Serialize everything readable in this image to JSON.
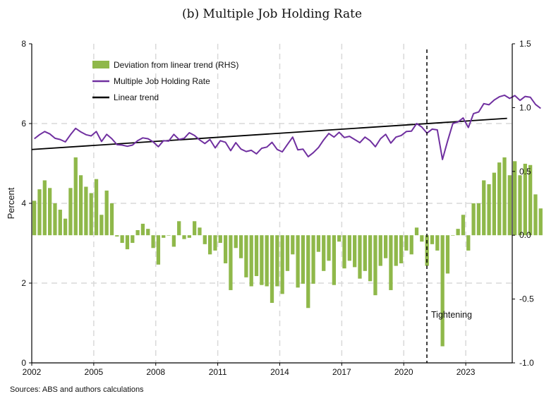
{
  "chart_data": {
    "type": "bar",
    "title": "(b) Multiple Job Holding Rate",
    "ylabel": "Percent",
    "ylabel_right": "",
    "x_ticks": [
      "2002",
      "2005",
      "2008",
      "2011",
      "2014",
      "2017",
      "2020",
      "2023"
    ],
    "x_range": [
      2002.0,
      2025.25
    ],
    "ylim": [
      0,
      8
    ],
    "y_ticks": [
      "0",
      "2",
      "4",
      "6",
      "8"
    ],
    "ylim_right": [
      -1.0,
      1.5
    ],
    "y_ticks_right": [
      "-1.0",
      "-0.5",
      "0.0",
      "0.5",
      "1.0",
      "1.5"
    ],
    "grid": "horizontal dashed at 2, 4, 6; vertical dashed at year ticks",
    "legend_position": "top-left",
    "colors": {
      "deviation": "#8fb84a",
      "rate": "#7030a0",
      "trend": "#000000",
      "grid": "#d9d9d9"
    },
    "series": [
      {
        "name": "Deviation from linear trend (RHS)",
        "type": "bar",
        "axis": "right",
        "x_start": 2002.0,
        "x_step": 0.25,
        "values": [
          0.27,
          0.36,
          0.43,
          0.37,
          0.25,
          0.2,
          0.13,
          0.37,
          0.61,
          0.47,
          0.38,
          0.33,
          0.44,
          0.16,
          0.35,
          0.25,
          -0.01,
          -0.06,
          -0.11,
          -0.06,
          0.04,
          0.09,
          0.05,
          -0.1,
          -0.23,
          -0.02,
          0.0,
          -0.09,
          0.11,
          -0.03,
          -0.02,
          0.11,
          0.06,
          -0.07,
          -0.15,
          -0.12,
          -0.06,
          -0.22,
          -0.43,
          -0.1,
          -0.18,
          -0.33,
          -0.4,
          -0.32,
          -0.39,
          -0.4,
          -0.53,
          -0.4,
          -0.46,
          -0.28,
          -0.15,
          -0.41,
          -0.38,
          -0.57,
          -0.38,
          -0.13,
          -0.28,
          -0.2,
          -0.39,
          -0.05,
          -0.26,
          -0.2,
          -0.25,
          -0.34,
          -0.28,
          -0.36,
          -0.47,
          -0.24,
          -0.18,
          -0.43,
          -0.24,
          -0.22,
          -0.12,
          -0.15,
          0.06,
          -0.05,
          -0.24,
          -0.07,
          -0.12,
          -0.87,
          -0.3,
          0.0,
          0.05,
          0.16,
          -0.12,
          0.25,
          0.25,
          0.43,
          0.4,
          0.49,
          0.57,
          0.61,
          0.47,
          0.58,
          0.47,
          0.56,
          0.55,
          0.32,
          0.21
        ]
      },
      {
        "name": "Multiple Job Holding Rate",
        "type": "line",
        "axis": "left",
        "x_start": 2002.0,
        "x_step": 0.25,
        "values": [
          5.62,
          5.72,
          5.8,
          5.74,
          5.63,
          5.6,
          5.54,
          5.72,
          5.88,
          5.79,
          5.72,
          5.69,
          5.8,
          5.55,
          5.73,
          5.62,
          5.47,
          5.46,
          5.43,
          5.46,
          5.57,
          5.64,
          5.62,
          5.54,
          5.42,
          5.57,
          5.56,
          5.73,
          5.6,
          5.63,
          5.77,
          5.7,
          5.59,
          5.5,
          5.6,
          5.39,
          5.57,
          5.53,
          5.32,
          5.52,
          5.36,
          5.3,
          5.33,
          5.24,
          5.38,
          5.41,
          5.53,
          5.35,
          5.29,
          5.48,
          5.66,
          5.34,
          5.36,
          5.17,
          5.27,
          5.4,
          5.59,
          5.75,
          5.66,
          5.78,
          5.65,
          5.68,
          5.6,
          5.52,
          5.66,
          5.57,
          5.42,
          5.62,
          5.73,
          5.51,
          5.66,
          5.7,
          5.8,
          5.81,
          6.0,
          5.91,
          5.76,
          5.86,
          5.84,
          5.1,
          5.57,
          6.0,
          6.04,
          6.14,
          5.9,
          6.25,
          6.29,
          6.5,
          6.47,
          6.59,
          6.67,
          6.71,
          6.63,
          6.7,
          6.58,
          6.68,
          6.66,
          6.48,
          6.38
        ]
      },
      {
        "name": "Linear trend",
        "type": "line",
        "axis": "left",
        "x": [
          2002.0,
          2025.0
        ],
        "values": [
          5.35,
          6.13
        ]
      }
    ],
    "annotations": [
      {
        "text": "Tightening",
        "x": 2021.12,
        "style": "dashed vertical line"
      }
    ],
    "source": "Sources: ABS and authors calculations"
  }
}
